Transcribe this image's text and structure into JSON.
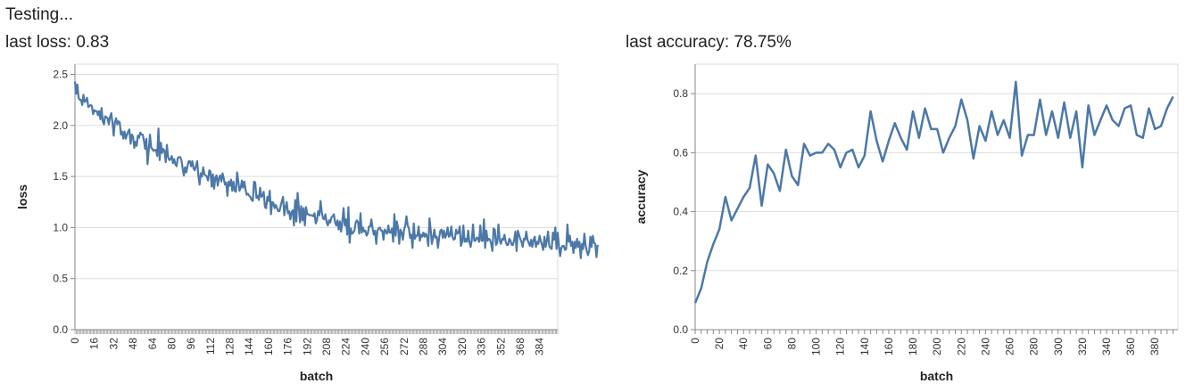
{
  "status_text": "Testing...",
  "metrics": {
    "loss_label": "last loss: 0.83",
    "accuracy_label": "last accuracy: 78.75%"
  },
  "colors": {
    "line": "#4c78a8",
    "grid": "#dddddd",
    "axis": "#888888"
  },
  "chart_data": [
    {
      "type": "line",
      "xlabel": "batch",
      "ylabel": "loss",
      "xlim": [
        0,
        399
      ],
      "ylim": [
        0,
        2.6
      ],
      "yticks": [
        0.0,
        0.5,
        1.0,
        1.5,
        2.0,
        2.5
      ],
      "ytick_labels": [
        "0.0",
        "0.5",
        "1.0",
        "1.5",
        "2.0",
        "2.5"
      ],
      "xtick_labels": [
        "0",
        "16",
        "32",
        "48",
        "64",
        "80",
        "96",
        "112",
        "128",
        "144",
        "160",
        "176",
        "192",
        "208",
        "224",
        "240",
        "256",
        "272",
        "288",
        "304",
        "320",
        "336",
        "352",
        "368",
        "384"
      ],
      "grid": true,
      "series": [
        {
          "x_start": 0,
          "x_step": 1,
          "values": [
            2.43,
            2.31,
            2.4,
            2.27,
            2.25,
            2.25,
            2.2,
            2.3,
            2.23,
            2.24,
            2.27,
            2.18,
            2.19,
            2.2,
            2.19,
            2.11,
            2.15,
            2.14,
            2.14,
            2.1,
            2.14,
            2.06,
            2.17,
            2.04,
            2.01,
            2.09,
            2.08,
            2.07,
            2.01,
            2.08,
            2.12,
            2.03,
            1.9,
            2.03,
            2.07,
            2.01,
            2.04,
            2.03,
            1.91,
            1.94,
            1.87,
            1.94,
            1.87,
            1.91,
            1.94,
            1.96,
            1.82,
            1.91,
            1.89,
            1.78,
            1.84,
            1.8,
            1.9,
            1.88,
            1.93,
            1.91,
            1.91,
            1.85,
            1.77,
            1.87,
            1.62,
            1.76,
            1.91,
            1.78,
            1.77,
            1.75,
            1.76,
            1.76,
            1.7,
            1.97,
            1.66,
            1.83,
            1.73,
            1.77,
            1.75,
            1.64,
            1.81,
            1.69,
            1.66,
            1.67,
            1.7,
            1.63,
            1.67,
            1.62,
            1.6,
            1.68,
            1.69,
            1.69,
            1.66,
            1.58,
            1.51,
            1.59,
            1.54,
            1.6,
            1.65,
            1.65,
            1.6,
            1.65,
            1.58,
            1.56,
            1.6,
            1.65,
            1.51,
            1.42,
            1.53,
            1.5,
            1.59,
            1.52,
            1.51,
            1.5,
            1.46,
            1.56,
            1.55,
            1.4,
            1.52,
            1.38,
            1.49,
            1.51,
            1.41,
            1.48,
            1.51,
            1.45,
            1.53,
            1.48,
            1.42,
            1.44,
            1.31,
            1.45,
            1.41,
            1.47,
            1.36,
            1.45,
            1.36,
            1.35,
            1.54,
            1.45,
            1.36,
            1.39,
            1.46,
            1.39,
            1.45,
            1.37,
            1.32,
            1.33,
            1.31,
            1.3,
            1.27,
            1.26,
            1.45,
            1.44,
            1.29,
            1.31,
            1.27,
            1.39,
            1.3,
            1.31,
            1.35,
            1.2,
            1.19,
            1.3,
            1.26,
            1.36,
            1.13,
            1.25,
            1.24,
            1.19,
            1.22,
            1.19,
            1.16,
            1.16,
            1.21,
            1.26,
            1.3,
            1.12,
            1.2,
            1.25,
            1.14,
            1.16,
            1.08,
            1.15,
            1.17,
            1.02,
            1.27,
            1.06,
            1.34,
            1.2,
            1.05,
            1.21,
            1.07,
            1.19,
            1.02,
            1.2,
            1.13,
            1.13,
            1.12,
            1.12,
            1.12,
            1.11,
            1.14,
            1.04,
            1.07,
            1.16,
            1.12,
            1.26,
            1.15,
            1.09,
            1.08,
            1.13,
            1.05,
            1.02,
            1.07,
            1.05,
            1.1,
            1.11,
            1.13,
            1.05,
            1.02,
            1.07,
            0.98,
            1.06,
            0.96,
            1.06,
            1.19,
            1.02,
            1.08,
            0.93,
            1.2,
            0.85,
            0.99,
            0.94,
            0.95,
            0.97,
            1.05,
            1.07,
            1.05,
            0.94,
            1.14,
            0.95,
            1.0,
            0.96,
            0.97,
            0.92,
            0.94,
            1.01,
            1.01,
            1.08,
            0.99,
            0.93,
            0.97,
            0.84,
            0.97,
            0.99,
            1.0,
            0.97,
            0.97,
            0.88,
            0.98,
            0.96,
            0.94,
            1.02,
            0.95,
            0.95,
            0.99,
            0.86,
            1.13,
            0.92,
            1.06,
            1.0,
            0.84,
            0.98,
            0.95,
            0.88,
            0.98,
            1.02,
            1.11,
            1.02,
            0.99,
            0.9,
            0.93,
            0.8,
            1.04,
            0.89,
            0.92,
            0.92,
            1.01,
            0.87,
            0.93,
            0.91,
            0.95,
            0.91,
            0.94,
            0.91,
            0.82,
            1.09,
            0.98,
            0.84,
            0.9,
            0.98,
            0.9,
            0.91,
            0.8,
            0.9,
            0.97,
            0.98,
            0.9,
            0.97,
            0.9,
            0.93,
            1.0,
            0.91,
            0.92,
            1.01,
            0.91,
            0.88,
            0.89,
            0.98,
            0.94,
            0.95,
            1.01,
            0.82,
            0.86,
            1.02,
            0.86,
            0.89,
            0.86,
            0.97,
            0.86,
            0.81,
            0.88,
            1.03,
            0.87,
            0.87,
            0.9,
            0.9,
            0.86,
            1.02,
            0.87,
            0.87,
            1.08,
            0.8,
            0.97,
            0.87,
            0.89,
            0.88,
            0.84,
            0.77,
            0.99,
            0.98,
            0.83,
            0.85,
            1.03,
            0.88,
            0.84,
            0.89,
            0.88,
            0.93,
            0.86,
            0.83,
            0.83,
            0.89,
            0.87,
            0.83,
            0.83,
            0.88,
            0.96,
            0.77,
            0.97,
            0.93,
            0.89,
            0.86,
            0.81,
            0.89,
            0.88,
            0.96,
            0.88,
            0.85,
            0.82,
            0.88,
            0.81,
            0.88,
            0.91,
            0.81,
            0.86,
            0.84,
            0.92,
            0.87,
            0.83,
            0.78,
            0.91,
            0.81,
            0.87,
            0.96,
            0.82,
            0.8,
            0.79,
            0.95,
            0.88,
            1.0,
            0.79,
            0.95,
            0.82,
            0.72,
            0.8,
            0.82,
            0.82,
            0.78,
            0.79,
            1.03,
            0.86,
            0.92,
            0.82,
            0.86,
            0.75,
            0.86,
            0.8,
            0.89,
            0.81,
            0.86,
            0.7,
            0.84,
            0.79,
            0.94,
            0.83,
            0.77,
            0.73,
            0.77,
            0.91,
            0.81,
            0.92,
            0.85,
            0.84,
            0.71,
            0.83
          ]
        }
      ]
    },
    {
      "type": "line",
      "xlabel": "batch",
      "ylabel": "accuracy",
      "xlim": [
        0,
        399
      ],
      "ylim": [
        0,
        0.9
      ],
      "yticks": [
        0.0,
        0.2,
        0.4,
        0.6,
        0.8
      ],
      "ytick_labels": [
        "0.0",
        "0.2",
        "0.4",
        "0.6",
        "0.8"
      ],
      "xtick_labels": [
        "0",
        "20",
        "40",
        "60",
        "80",
        "100",
        "120",
        "140",
        "160",
        "180",
        "200",
        "220",
        "240",
        "260",
        "280",
        "300",
        "320",
        "340",
        "360",
        "380"
      ],
      "grid": true,
      "series": [
        {
          "x": [
            0,
            5,
            10,
            15,
            20,
            25,
            30,
            35,
            40,
            45,
            50,
            55,
            60,
            65,
            70,
            75,
            80,
            85,
            90,
            95,
            100,
            105,
            110,
            115,
            120,
            125,
            130,
            135,
            140,
            145,
            150,
            155,
            160,
            165,
            170,
            175,
            180,
            185,
            190,
            195,
            200,
            205,
            210,
            215,
            220,
            225,
            230,
            235,
            240,
            245,
            250,
            255,
            260,
            265,
            270,
            275,
            280,
            285,
            290,
            295,
            300,
            305,
            310,
            315,
            320,
            325,
            330,
            335,
            340,
            345,
            350,
            355,
            360,
            365,
            370,
            375,
            380,
            385,
            390,
            395
          ],
          "values": [
            0.09,
            0.14,
            0.23,
            0.29,
            0.34,
            0.45,
            0.37,
            0.41,
            0.45,
            0.48,
            0.59,
            0.42,
            0.56,
            0.53,
            0.47,
            0.61,
            0.52,
            0.49,
            0.63,
            0.59,
            0.6,
            0.6,
            0.63,
            0.61,
            0.55,
            0.6,
            0.61,
            0.55,
            0.59,
            0.74,
            0.64,
            0.57,
            0.64,
            0.7,
            0.65,
            0.61,
            0.74,
            0.65,
            0.75,
            0.68,
            0.68,
            0.6,
            0.65,
            0.69,
            0.78,
            0.71,
            0.58,
            0.69,
            0.64,
            0.74,
            0.66,
            0.71,
            0.65,
            0.84,
            0.59,
            0.66,
            0.66,
            0.78,
            0.66,
            0.74,
            0.65,
            0.77,
            0.65,
            0.74,
            0.55,
            0.76,
            0.66,
            0.71,
            0.76,
            0.71,
            0.69,
            0.75,
            0.76,
            0.66,
            0.65,
            0.75,
            0.68,
            0.69,
            0.75,
            0.79
          ]
        }
      ]
    }
  ]
}
